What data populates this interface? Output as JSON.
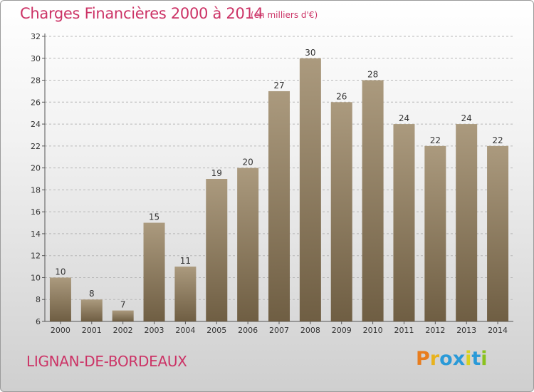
{
  "header": {
    "title": "Charges Financières 2000 à 2014",
    "subtitle": "(en milliers d'€)"
  },
  "footer": {
    "city": "LIGNAN-DE-BORDEAUX",
    "logo_text": "Proxiti"
  },
  "colors": {
    "title": "#cc3366",
    "bar_top": "#ab9a7e",
    "bar_bottom": "#6f5e43",
    "logo_letters": [
      "#e87d1e",
      "#e8b21e",
      "#2a9ad8",
      "#2a9ad8",
      "#d8d21e",
      "#2a9ad8",
      "#8ac21e"
    ]
  },
  "chart_data": {
    "type": "bar",
    "title": "Charges Financières 2000 à 2014",
    "subtitle": "(en milliers d'€)",
    "categories": [
      "2000",
      "2001",
      "2002",
      "2003",
      "2004",
      "2005",
      "2006",
      "2007",
      "2008",
      "2009",
      "2010",
      "2011",
      "2012",
      "2013",
      "2014"
    ],
    "values": [
      10,
      8,
      7,
      15,
      11,
      19,
      20,
      27,
      30,
      26,
      28,
      24,
      22,
      24,
      22
    ],
    "ylim": [
      6,
      32
    ],
    "yticks": [
      6,
      8,
      10,
      12,
      14,
      16,
      18,
      20,
      22,
      24,
      26,
      28,
      30,
      32
    ],
    "grid": true,
    "data_labels": true,
    "xlabel": "",
    "ylabel": ""
  }
}
